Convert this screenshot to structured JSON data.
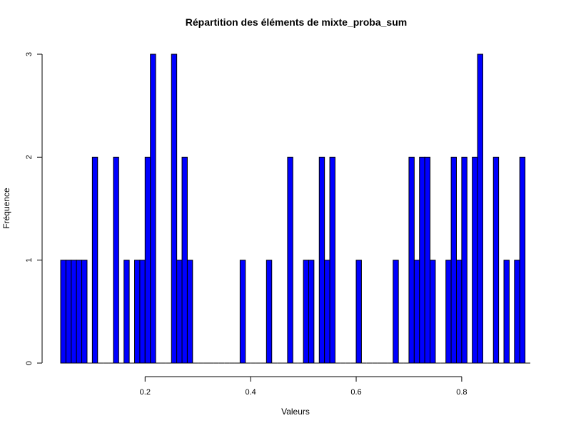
{
  "chart_data": {
    "type": "bar",
    "title": "Répartition des éléments de mixte_proba_sum",
    "xlabel": "Valeurs",
    "ylabel": "Fréquence",
    "xlim": [
      0.04,
      0.93
    ],
    "ylim": [
      0,
      3
    ],
    "bin_width": 0.01,
    "x_ticks": [
      0.2,
      0.4,
      0.6,
      0.8
    ],
    "x_tick_labels": [
      "0.2",
      "0.4",
      "0.6",
      "0.8"
    ],
    "y_ticks": [
      0,
      1,
      2,
      3
    ],
    "y_tick_labels": [
      "0",
      "1",
      "2",
      "3"
    ],
    "bin_starts": [
      0.04,
      0.05,
      0.06,
      0.07,
      0.08,
      0.09,
      0.1,
      0.11,
      0.12,
      0.13,
      0.14,
      0.15,
      0.16,
      0.17,
      0.18,
      0.19,
      0.2,
      0.21,
      0.22,
      0.23,
      0.24,
      0.25,
      0.26,
      0.27,
      0.28,
      0.29,
      0.3,
      0.31,
      0.32,
      0.33,
      0.34,
      0.35,
      0.36,
      0.37,
      0.38,
      0.39,
      0.4,
      0.41,
      0.42,
      0.43,
      0.44,
      0.45,
      0.46,
      0.47,
      0.48,
      0.49,
      0.5,
      0.51,
      0.52,
      0.53,
      0.54,
      0.55,
      0.56,
      0.57,
      0.58,
      0.59,
      0.6,
      0.61,
      0.62,
      0.63,
      0.64,
      0.65,
      0.66,
      0.67,
      0.68,
      0.69,
      0.7,
      0.71,
      0.72,
      0.73,
      0.74,
      0.75,
      0.76,
      0.77,
      0.78,
      0.79,
      0.8,
      0.81,
      0.82,
      0.83,
      0.84,
      0.85,
      0.86,
      0.87,
      0.88,
      0.89,
      0.9,
      0.91,
      0.92
    ],
    "counts": [
      1,
      1,
      1,
      1,
      1,
      0,
      2,
      0,
      0,
      0,
      2,
      0,
      1,
      0,
      1,
      1,
      2,
      3,
      0,
      0,
      0,
      3,
      1,
      2,
      1,
      0,
      0,
      0,
      0,
      0,
      0,
      0,
      0,
      0,
      1,
      0,
      0,
      0,
      0,
      1,
      0,
      0,
      0,
      2,
      0,
      0,
      1,
      1,
      0,
      2,
      1,
      2,
      0,
      0,
      0,
      0,
      1,
      0,
      0,
      0,
      0,
      0,
      0,
      1,
      0,
      0,
      2,
      1,
      2,
      2,
      1,
      0,
      0,
      1,
      2,
      1,
      2,
      0,
      2,
      3,
      0,
      0,
      2,
      0,
      1,
      0,
      1,
      2,
      0
    ],
    "grid": false,
    "legend": "none",
    "bar_color": "#0000ff",
    "bar_border_color": "#000000"
  }
}
